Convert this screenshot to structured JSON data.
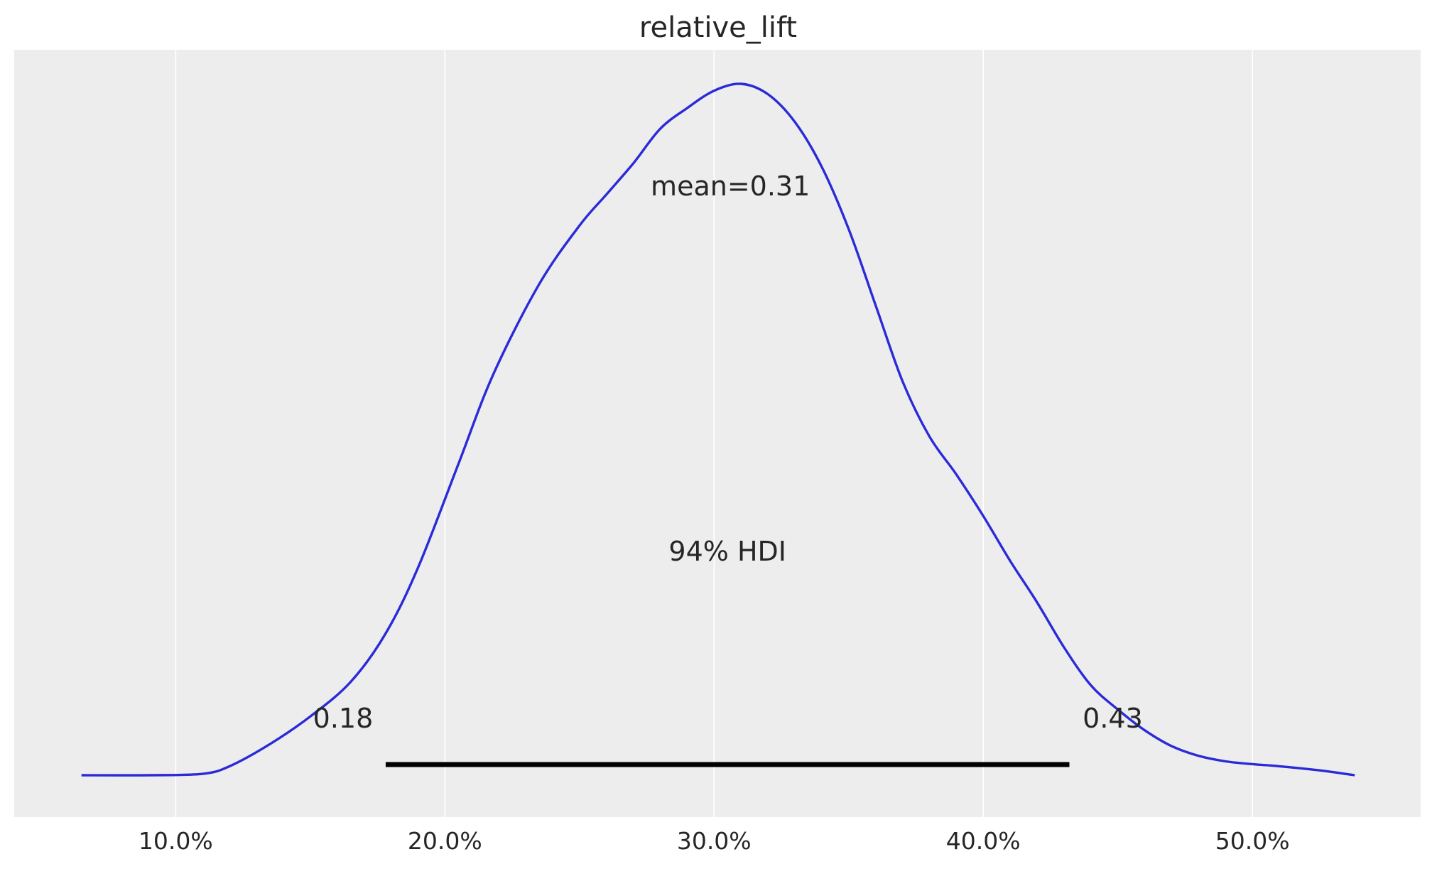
{
  "chart_data": {
    "type": "area",
    "title": "relative_lift",
    "xlabel": "",
    "ylabel": "",
    "xlim": [
      0.04,
      0.5625
    ],
    "x_ticks": [
      0.1,
      0.2,
      0.3,
      0.4,
      0.5
    ],
    "x_tick_labels": [
      "10.0%",
      "20.0%",
      "30.0%",
      "40.0%",
      "50.0%"
    ],
    "grid": true,
    "y_axis_visible": false,
    "colors": {
      "line": "#2a2ad8",
      "background": "#ededee",
      "grid": "#ffffff",
      "hdi_bar": "#000000"
    },
    "density": {
      "x": [
        0.065,
        0.09,
        0.11,
        0.12,
        0.135,
        0.15,
        0.165,
        0.178,
        0.19,
        0.205,
        0.218,
        0.235,
        0.25,
        0.26,
        0.27,
        0.28,
        0.29,
        0.3,
        0.31,
        0.32,
        0.33,
        0.34,
        0.35,
        0.36,
        0.37,
        0.38,
        0.39,
        0.4,
        0.41,
        0.42,
        0.43,
        0.44,
        0.45,
        0.46,
        0.47,
        0.48,
        0.49,
        0.5,
        0.51,
        0.525,
        0.538
      ],
      "y": [
        0.0,
        0.0,
        0.002,
        0.013,
        0.045,
        0.085,
        0.135,
        0.205,
        0.3,
        0.45,
        0.58,
        0.71,
        0.795,
        0.84,
        0.885,
        0.935,
        0.965,
        0.99,
        1.0,
        0.985,
        0.945,
        0.88,
        0.79,
        0.68,
        0.57,
        0.49,
        0.435,
        0.375,
        0.31,
        0.25,
        0.185,
        0.13,
        0.095,
        0.065,
        0.042,
        0.028,
        0.02,
        0.016,
        0.013,
        0.007,
        0.0
      ]
    },
    "mean": 0.31,
    "mean_label": "mean=0.31",
    "hdi": {
      "low": 0.178,
      "high": 0.432,
      "label": "94% HDI",
      "low_label": "0.18",
      "high_label": "0.43"
    }
  }
}
